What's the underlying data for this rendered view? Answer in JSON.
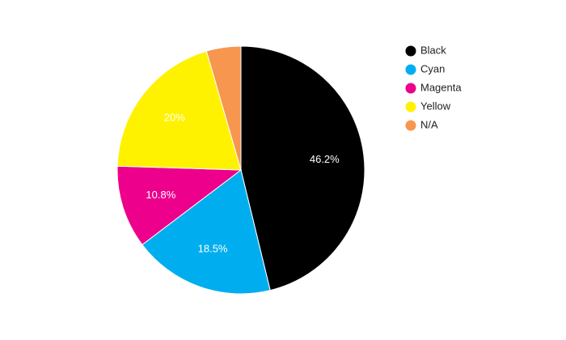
{
  "chart_data": {
    "type": "pie",
    "categories": [
      "Black",
      "Cyan",
      "Magenta",
      "Yellow",
      "N/A"
    ],
    "values": [
      46.2,
      18.5,
      10.8,
      20,
      4.5
    ],
    "value_labels": [
      "46.2%",
      "18.5%",
      "10.8%",
      "20%",
      null
    ],
    "colors": [
      "#000000",
      "#00aeef",
      "#ec008c",
      "#fff200",
      "#f7964f"
    ],
    "legend": "right"
  }
}
